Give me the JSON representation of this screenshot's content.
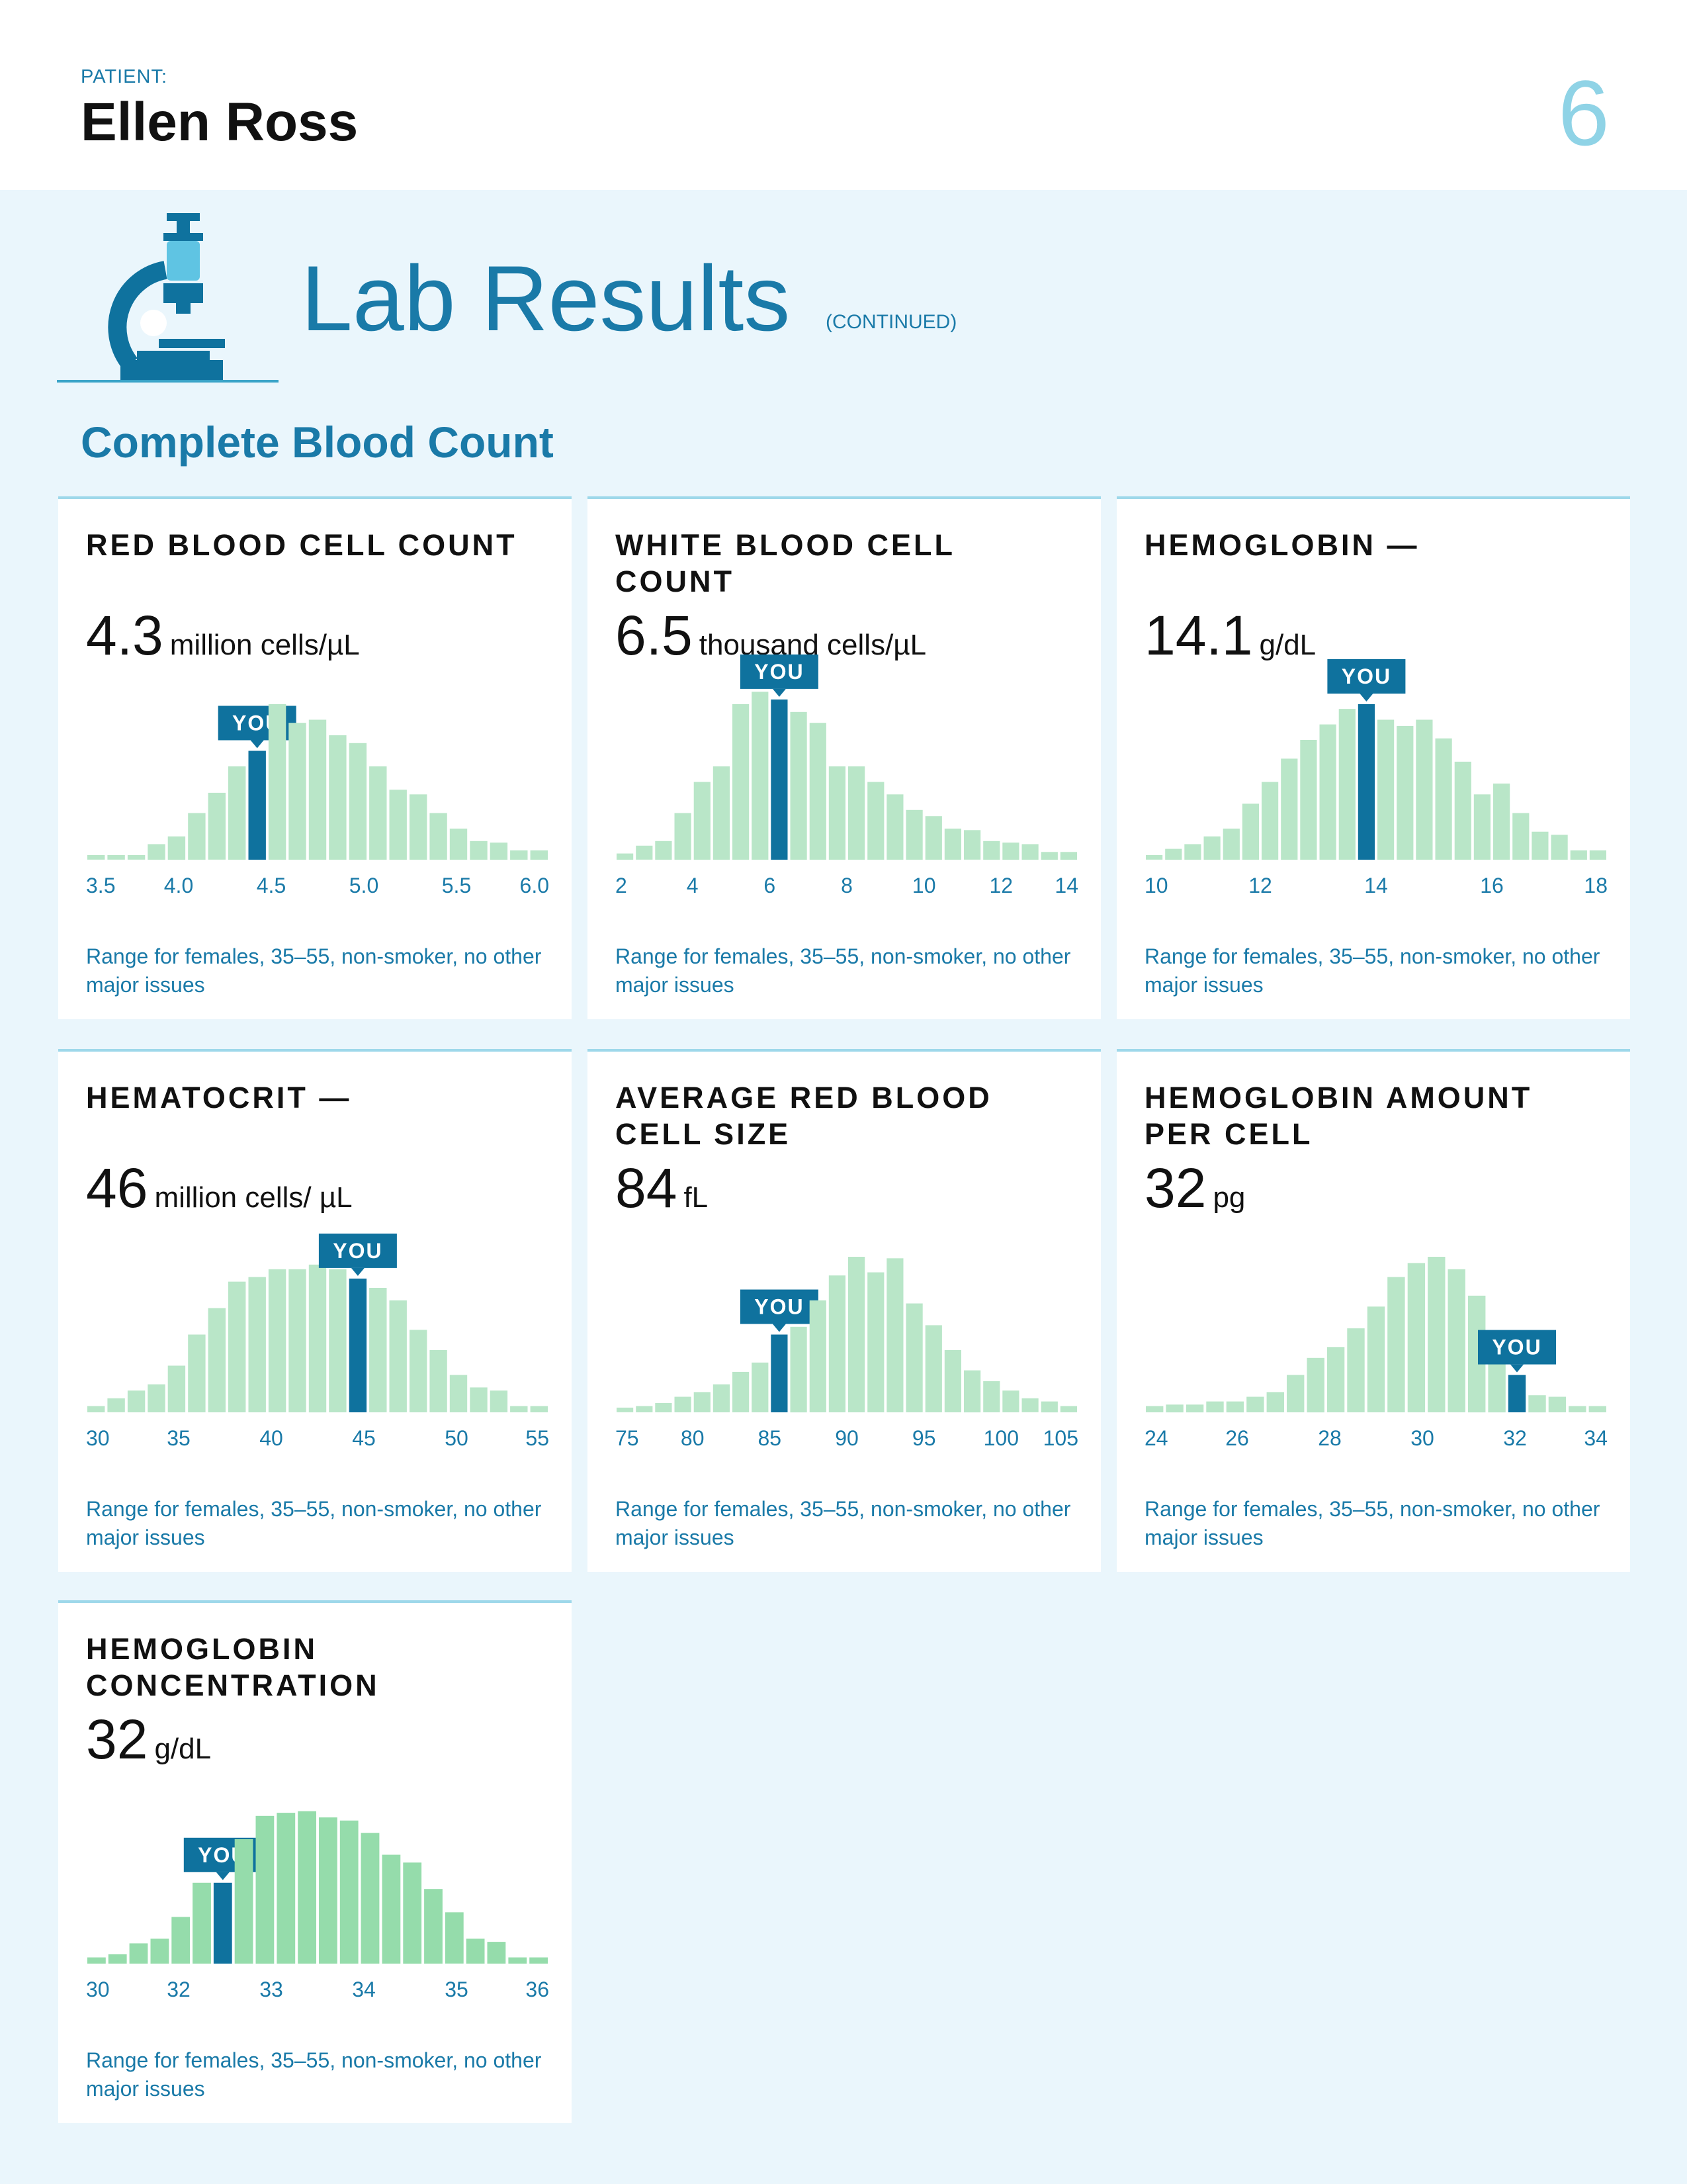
{
  "header": {
    "patient_label": "PATIENT:",
    "patient_name": "Ellen Ross",
    "page_number": "6"
  },
  "section": {
    "title": "Lab Results",
    "note": "(CONTINUED)",
    "icon": "microscope-icon",
    "subtitle": "Complete Blood Count"
  },
  "colors": {
    "accent": "#1a7aa8",
    "bar": "#b9e6c8",
    "bar_concentration": "#95dcab",
    "you_marker": "#0f729e",
    "background": "#eaf6fc"
  },
  "you_label": "YOU",
  "footnote": "Range for females, 35–55, non-smoker, no other major issues",
  "cards": [
    {
      "title": "RED BLOOD CELL COUNT",
      "value": "4.3",
      "unit": "million cells/µL",
      "chart_data": {
        "type": "bar",
        "title": "",
        "xlabel": "",
        "ylabel": "",
        "ticks": [
          "3.5",
          "4.0",
          "4.5",
          "5.0",
          "5.5",
          "6.0"
        ],
        "values": [
          3,
          3,
          3,
          10,
          15,
          30,
          43,
          60,
          70,
          100,
          88,
          90,
          80,
          75,
          60,
          45,
          42,
          30,
          20,
          12,
          11,
          6,
          6
        ],
        "you_index": 8,
        "you_value": 4.3
      }
    },
    {
      "title": "WHITE BLOOD CELL COUNT",
      "value": "6.5",
      "unit": "thousand cells/µL",
      "chart_data": {
        "type": "bar",
        "title": "",
        "xlabel": "",
        "ylabel": "",
        "ticks": [
          "2",
          "4",
          "6",
          "8",
          "10",
          "12",
          "14"
        ],
        "values": [
          4,
          9,
          12,
          30,
          50,
          60,
          100,
          108,
          103,
          95,
          88,
          60,
          60,
          50,
          42,
          32,
          28,
          20,
          19,
          12,
          11,
          10,
          5,
          5
        ],
        "you_index": 8,
        "you_value": 6.5
      }
    },
    {
      "title": "HEMOGLOBIN —",
      "value": "14.1",
      "unit": "g/dL",
      "chart_data": {
        "type": "bar",
        "title": "",
        "xlabel": "",
        "ylabel": "",
        "ticks": [
          "10",
          "12",
          "14",
          "16",
          "18"
        ],
        "values": [
          3,
          7,
          10,
          15,
          20,
          36,
          50,
          65,
          77,
          87,
          97,
          100,
          90,
          86,
          90,
          78,
          63,
          42,
          49,
          30,
          18,
          16,
          6,
          6
        ],
        "you_index": 11,
        "you_value": 14.1
      }
    },
    {
      "title": "HEMATOCRIT —",
      "value": "46",
      "unit": "million cells/ µL",
      "chart_data": {
        "type": "bar",
        "title": "",
        "xlabel": "",
        "ylabel": "",
        "ticks": [
          "30",
          "35",
          "40",
          "45",
          "50",
          "55"
        ],
        "values": [
          4,
          9,
          14,
          18,
          30,
          50,
          67,
          84,
          87,
          92,
          92,
          95,
          92,
          86,
          80,
          72,
          53,
          40,
          24,
          16,
          14,
          4,
          4
        ],
        "you_index": 13,
        "you_value": 46
      }
    },
    {
      "title": "AVERAGE RED BLOOD CELL SIZE",
      "value": "84",
      "unit": "fL",
      "chart_data": {
        "type": "bar",
        "title": "",
        "xlabel": "",
        "ylabel": "",
        "ticks": [
          "75",
          "80",
          "85",
          "90",
          "95",
          "100",
          "105"
        ],
        "values": [
          3,
          4,
          6,
          10,
          13,
          18,
          26,
          32,
          50,
          55,
          72,
          88,
          100,
          90,
          99,
          70,
          56,
          40,
          27,
          20,
          14,
          9,
          7,
          4
        ],
        "you_index": 8,
        "you_value": 84
      }
    },
    {
      "title": "HEMOGLOBIN AMOUNT PER CELL",
      "value": "32",
      "unit": "pg",
      "chart_data": {
        "type": "bar",
        "title": "",
        "xlabel": "",
        "ylabel": "",
        "ticks": [
          "24",
          "26",
          "28",
          "30",
          "32",
          "34"
        ],
        "values": [
          4,
          5,
          5,
          7,
          7,
          10,
          13,
          24,
          35,
          42,
          54,
          68,
          87,
          96,
          100,
          92,
          75,
          35,
          24,
          11,
          10,
          4,
          4
        ],
        "you_index": 18,
        "you_value": 32
      }
    },
    {
      "title": "HEMOGLOBIN CONCENTRATION",
      "value": "32",
      "unit": "g/dL",
      "chart_data": {
        "type": "bar",
        "title": "",
        "xlabel": "",
        "ylabel": "",
        "ticks": [
          "30",
          "32",
          "33",
          "34",
          "35",
          "36"
        ],
        "values": [
          4,
          6,
          13,
          16,
          30,
          52,
          52,
          80,
          95,
          97,
          98,
          94,
          92,
          84,
          70,
          65,
          48,
          33,
          16,
          14,
          4,
          4
        ],
        "you_index": 6,
        "you_value": 32,
        "bar_style": "concentration"
      }
    }
  ]
}
